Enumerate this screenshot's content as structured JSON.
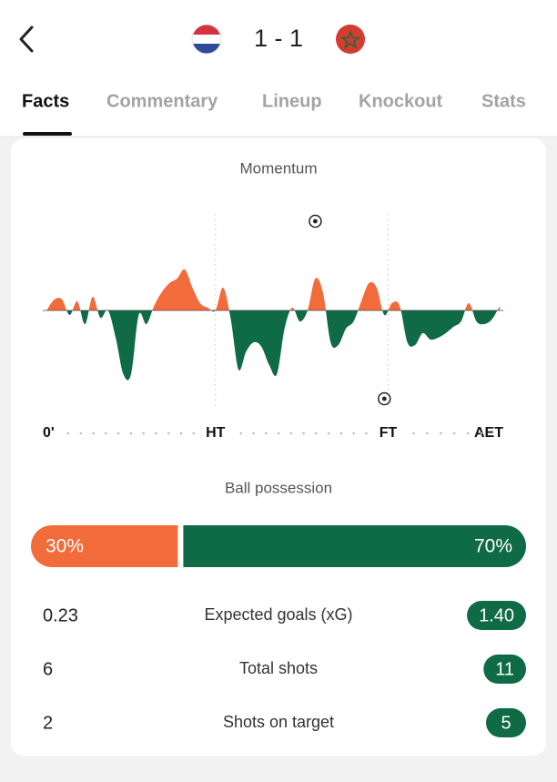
{
  "header": {
    "score": "1 - 1"
  },
  "tabs": [
    "Facts",
    "Commentary",
    "Lineup",
    "Knockout",
    "Stats"
  ],
  "chart_data": {
    "type": "area",
    "title": "Momentum",
    "x": [
      1,
      3,
      5,
      7,
      9,
      11,
      13,
      15,
      17,
      19,
      21,
      23,
      25,
      27,
      29,
      31,
      33,
      35,
      37,
      39,
      41,
      43,
      45,
      47,
      49,
      51,
      53,
      55,
      57,
      59,
      61,
      63,
      65,
      67,
      69,
      71,
      73,
      75,
      77,
      79,
      81,
      83,
      85,
      87,
      89,
      91,
      93,
      95,
      97,
      99,
      101,
      103,
      105,
      107,
      109,
      111,
      113,
      115,
      117,
      119
    ],
    "values": [
      0,
      12,
      12,
      -5,
      10,
      -15,
      15,
      -8,
      0,
      -30,
      -70,
      -70,
      -5,
      -15,
      5,
      20,
      30,
      35,
      45,
      25,
      8,
      3,
      0,
      25,
      -10,
      -65,
      -45,
      -35,
      -40,
      -60,
      -70,
      -20,
      3,
      -12,
      0,
      35,
      20,
      -35,
      -38,
      -20,
      -12,
      10,
      30,
      25,
      -5,
      8,
      5,
      -35,
      -38,
      -25,
      -32,
      -30,
      -25,
      -18,
      -12,
      8,
      -12,
      -15,
      -10,
      4
    ],
    "positive_color": "#f26b3a",
    "negative_color": "#0f6b45",
    "xlim": [
      0,
      120
    ],
    "xticks": [
      {
        "value": 0,
        "label": "0'"
      },
      {
        "value": 45,
        "label": "HT"
      },
      {
        "value": 90,
        "label": "FT"
      },
      {
        "value": 120,
        "label": "AET"
      }
    ],
    "ylim": [
      -100,
      100
    ],
    "goals": [
      {
        "side": "home",
        "minute": 71
      },
      {
        "side": "away",
        "minute": 89
      }
    ]
  },
  "possession": {
    "title": "Ball possession",
    "values": [
      30,
      70
    ],
    "value_labels": [
      "30%",
      "70%"
    ],
    "colors": [
      "#f26b3a",
      "#0f6b45"
    ]
  },
  "stats": [
    {
      "label": "Expected goals (xG)",
      "home": 0.23,
      "away": 1.4,
      "away_label": "1.40"
    },
    {
      "label": "Total shots",
      "home": 6,
      "away": 11
    },
    {
      "label": "Shots on target",
      "home": 2,
      "away": 5
    }
  ]
}
